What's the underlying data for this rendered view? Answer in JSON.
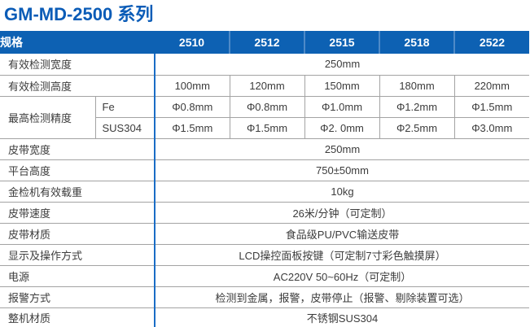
{
  "page_title": "GM-MD-2500 系列",
  "colors": {
    "title_blue": "#0b5cb7",
    "header_bg": "#0d61b3",
    "header_divider": "#4e8ac8",
    "label_divider_blue": "#1a6dc6",
    "grid_gray": "#a3a3a3",
    "bottom_border_blue": "#8cb8dd",
    "text": "#3c3c3c"
  },
  "table": {
    "header": {
      "spec_label": "规格",
      "models": [
        "2510",
        "2512",
        "2515",
        "2518",
        "2522"
      ]
    },
    "rows": [
      {
        "label": "有效检测宽度",
        "span_value": "250mm"
      },
      {
        "label": "有效检测高度",
        "values": [
          "100mm",
          "120mm",
          "150mm",
          "180mm",
          "220mm"
        ]
      },
      {
        "label": "最高检测精度",
        "sub_rows": [
          {
            "sub_label": "Fe",
            "values": [
              "Φ0.8mm",
              "Φ0.8mm",
              "Φ1.0mm",
              "Φ1.2mm",
              "Φ1.5mm"
            ]
          },
          {
            "sub_label": "SUS304",
            "values": [
              "Φ1.5mm",
              "Φ1.5mm",
              "Φ2. 0mm",
              "Φ2.5mm",
              "Φ3.0mm"
            ]
          }
        ]
      },
      {
        "label": "皮带宽度",
        "span_value": "250mm"
      },
      {
        "label": "平台高度",
        "span_value": "750±50mm"
      },
      {
        "label": "金检机有效载重",
        "span_value": "10kg"
      },
      {
        "label": "皮带速度",
        "span_value": "26米/分钟（可定制）"
      },
      {
        "label": "皮带材质",
        "span_value": "食品级PU/PVC输送皮带"
      },
      {
        "label": "显示及操作方式",
        "span_value": "LCD操控面板按键（可定制7寸彩色触摸屏）"
      },
      {
        "label": "电源",
        "span_value": "AC220V 50~60Hz（可定制）"
      },
      {
        "label": "报警方式",
        "span_value": "检测到金属，报警，皮带停止（报警、剔除装置可选）"
      },
      {
        "label": "整机材质",
        "span_value": "不锈钢SUS304"
      }
    ]
  }
}
